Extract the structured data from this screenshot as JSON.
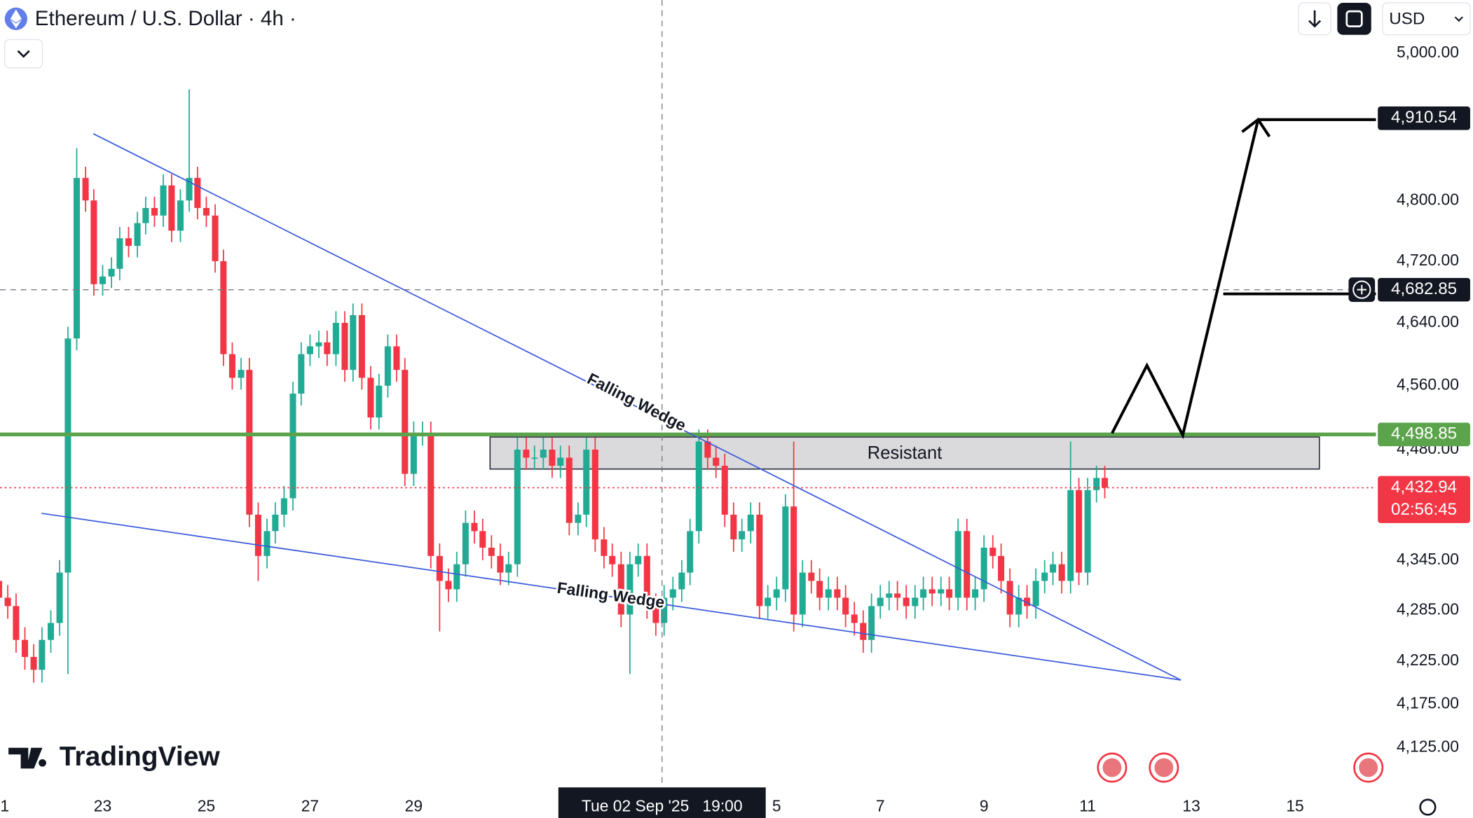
{
  "header": {
    "title": "Ethereum / U.S. Dollar · 4h ·",
    "currency": "USD",
    "logo": "TradingView"
  },
  "chart_data": {
    "type": "candlestick",
    "log": true,
    "up_color": "#22ab94",
    "down_color": "#f23645",
    "xlim": [
      21.02,
      47.56
    ],
    "ylim": [
      4081,
      5074
    ],
    "xticks": [
      {
        "value": 21,
        "label": "1"
      },
      23,
      25,
      27,
      29,
      {
        "value": 36,
        "label": "5"
      },
      {
        "value": 38,
        "label": "7"
      },
      {
        "value": 40,
        "label": "9"
      },
      {
        "value": 42,
        "label": "11"
      },
      {
        "value": 44,
        "label": "13"
      },
      {
        "value": 46,
        "label": "15"
      }
    ],
    "yticks": [
      {
        "value": 5000,
        "label": "5,000.00"
      },
      {
        "value": 4800,
        "label": "4,800.00"
      },
      {
        "value": 4720,
        "label": "4,720.00"
      },
      {
        "value": 4640,
        "label": "4,640.00"
      },
      {
        "value": 4560,
        "label": "4,560.00"
      },
      {
        "value": 4480,
        "label": "4,480.00"
      },
      {
        "value": 4345,
        "label": "4,345.00"
      },
      {
        "value": 4285,
        "label": "4,285.00"
      },
      {
        "value": 4225,
        "label": "4,225.00"
      },
      {
        "value": 4175,
        "label": "4,175.00"
      },
      {
        "value": 4125,
        "label": "4,125.00"
      }
    ],
    "x": [
      21,
      21.17,
      21.33,
      21.5,
      21.67,
      21.83,
      22,
      22.17,
      22.33,
      22.5,
      22.67,
      22.83,
      23,
      23.17,
      23.33,
      23.5,
      23.67,
      23.83,
      24,
      24.17,
      24.33,
      24.5,
      24.67,
      24.83,
      25,
      25.17,
      25.33,
      25.5,
      25.67,
      25.83,
      26,
      26.17,
      26.33,
      26.5,
      26.67,
      26.83,
      27,
      27.17,
      27.33,
      27.5,
      27.67,
      27.83,
      28,
      28.17,
      28.33,
      28.5,
      28.67,
      28.83,
      29,
      29.17,
      29.33,
      29.5,
      29.67,
      29.83,
      30,
      30.17,
      30.33,
      30.5,
      30.67,
      30.83,
      31,
      31.17,
      31.33,
      31.5,
      31.67,
      31.83,
      32,
      32.17,
      32.33,
      32.5,
      32.67,
      32.83,
      33,
      33.17,
      33.33,
      33.5,
      33.67,
      33.83,
      34,
      34.17,
      34.33,
      34.5,
      34.67,
      34.83,
      35,
      35.17,
      35.33,
      35.5,
      35.67,
      35.83,
      36,
      36.17,
      36.33,
      36.5,
      36.67,
      36.83,
      37,
      37.17,
      37.33,
      37.5,
      37.67,
      37.83,
      38,
      38.17,
      38.33,
      38.5,
      38.67,
      38.83,
      39,
      39.17,
      39.33,
      39.5,
      39.67,
      39.83,
      40,
      40.17,
      40.33,
      40.5,
      40.67,
      40.83,
      41,
      41.17,
      41.33,
      41.5,
      41.67,
      41.83,
      42,
      42.17,
      42.33
    ],
    "open": [
      4320,
      4300,
      4290,
      4250,
      4230,
      4215,
      4250,
      4270,
      4330,
      4620,
      4830,
      4800,
      4690,
      4700,
      4710,
      4750,
      4740,
      4770,
      4790,
      4780,
      4820,
      4760,
      4800,
      4830,
      4790,
      4780,
      4720,
      4600,
      4570,
      4580,
      4400,
      4350,
      4380,
      4400,
      4420,
      4550,
      4600,
      4610,
      4615,
      4600,
      4640,
      4580,
      4650,
      4570,
      4520,
      4560,
      4610,
      4580,
      4450,
      4500,
      4500,
      4350,
      4320,
      4310,
      4340,
      4390,
      4380,
      4360,
      4350,
      4330,
      4340,
      4480,
      4470,
      4470,
      4480,
      4460,
      4470,
      4390,
      4400,
      4480,
      4370,
      4350,
      4340,
      4280,
      4340,
      4350,
      4290,
      4270,
      4300,
      4310,
      4330,
      4380,
      4490,
      4470,
      4460,
      4400,
      4370,
      4380,
      4400,
      4290,
      4300,
      4310,
      4410,
      4280,
      4330,
      4320,
      4300,
      4310,
      4300,
      4280,
      4270,
      4250,
      4290,
      4300,
      4305,
      4300,
      4290,
      4300,
      4310,
      4305,
      4310,
      4300,
      4380,
      4300,
      4310,
      4360,
      4350,
      4320,
      4280,
      4300,
      4290,
      4320,
      4330,
      4340,
      4320,
      4430,
      4330,
      4430,
      4445
    ],
    "high": [
      4335,
      4315,
      4305,
      4265,
      4245,
      4265,
      4285,
      4345,
      4635,
      4870,
      4845,
      4815,
      4715,
      4725,
      4765,
      4765,
      4785,
      4805,
      4805,
      4835,
      4835,
      4815,
      4950,
      4845,
      4805,
      4795,
      4735,
      4615,
      4595,
      4595,
      4415,
      4395,
      4415,
      4435,
      4565,
      4615,
      4625,
      4630,
      4630,
      4655,
      4655,
      4665,
      4665,
      4585,
      4575,
      4625,
      4625,
      4595,
      4515,
      4515,
      4515,
      4365,
      4335,
      4355,
      4405,
      4405,
      4395,
      4375,
      4365,
      4355,
      4495,
      4495,
      4485,
      4495,
      4495,
      4485,
      4485,
      4415,
      4495,
      4495,
      4385,
      4365,
      4355,
      4355,
      4365,
      4365,
      4305,
      4315,
      4325,
      4345,
      4395,
      4505,
      4505,
      4485,
      4475,
      4415,
      4395,
      4415,
      4415,
      4315,
      4325,
      4425,
      4490,
      4345,
      4345,
      4335,
      4325,
      4325,
      4315,
      4295,
      4285,
      4305,
      4315,
      4320,
      4320,
      4315,
      4315,
      4325,
      4325,
      4325,
      4325,
      4395,
      4395,
      4325,
      4375,
      4375,
      4365,
      4335,
      4315,
      4315,
      4335,
      4345,
      4355,
      4355,
      4490,
      4445,
      4445,
      4460,
      4460
    ],
    "low": [
      4285,
      4275,
      4235,
      4215,
      4200,
      4200,
      4235,
      4255,
      4210,
      4605,
      4785,
      4675,
      4675,
      4685,
      4695,
      4725,
      4725,
      4755,
      4765,
      4765,
      4745,
      4745,
      4785,
      4775,
      4765,
      4705,
      4585,
      4555,
      4555,
      4385,
      4320,
      4335,
      4365,
      4385,
      4405,
      4535,
      4585,
      4595,
      4585,
      4585,
      4565,
      4565,
      4555,
      4505,
      4505,
      4545,
      4565,
      4435,
      4435,
      4485,
      4335,
      4260,
      4295,
      4295,
      4325,
      4365,
      4345,
      4335,
      4315,
      4315,
      4325,
      4455,
      4455,
      4455,
      4445,
      4445,
      4375,
      4375,
      4385,
      4355,
      4335,
      4325,
      4265,
      4210,
      4325,
      4275,
      4255,
      4255,
      4285,
      4295,
      4315,
      4365,
      4455,
      4445,
      4385,
      4355,
      4355,
      4365,
      4275,
      4275,
      4285,
      4295,
      4260,
      4265,
      4305,
      4285,
      4285,
      4285,
      4265,
      4255,
      4235,
      4235,
      4275,
      4285,
      4285,
      4275,
      4275,
      4285,
      4290,
      4290,
      4285,
      4285,
      4285,
      4285,
      4295,
      4335,
      4305,
      4265,
      4265,
      4275,
      4275,
      4305,
      4315,
      4305,
      4305,
      4315,
      4315,
      4415,
      4420
    ],
    "close": [
      4300,
      4290,
      4250,
      4230,
      4215,
      4250,
      4270,
      4330,
      4620,
      4830,
      4800,
      4690,
      4700,
      4710,
      4750,
      4740,
      4770,
      4790,
      4780,
      4820,
      4760,
      4800,
      4830,
      4790,
      4780,
      4720,
      4600,
      4570,
      4580,
      4400,
      4350,
      4380,
      4400,
      4420,
      4550,
      4600,
      4610,
      4615,
      4600,
      4640,
      4580,
      4650,
      4570,
      4520,
      4560,
      4610,
      4580,
      4450,
      4500,
      4500,
      4350,
      4320,
      4310,
      4340,
      4390,
      4380,
      4360,
      4350,
      4330,
      4340,
      4480,
      4470,
      4470,
      4480,
      4460,
      4470,
      4390,
      4400,
      4480,
      4370,
      4350,
      4340,
      4280,
      4340,
      4350,
      4290,
      4270,
      4300,
      4310,
      4330,
      4380,
      4490,
      4470,
      4460,
      4400,
      4370,
      4380,
      4400,
      4290,
      4300,
      4310,
      4410,
      4280,
      4330,
      4320,
      4300,
      4310,
      4300,
      4280,
      4270,
      4250,
      4290,
      4300,
      4305,
      4300,
      4290,
      4300,
      4310,
      4305,
      4310,
      4300,
      4380,
      4300,
      4310,
      4360,
      4350,
      4320,
      4280,
      4300,
      4290,
      4320,
      4330,
      4340,
      4320,
      4430,
      4330,
      4430,
      4445,
      4433
    ],
    "price_lines": [
      {
        "value": 4910.54,
        "label": "4,910.54",
        "color": "#131722"
      },
      {
        "value": 4498.85,
        "label": "4,498.85",
        "color": "#5ba44c",
        "line": "solid"
      },
      {
        "value": 4432.94,
        "label": "4,432.94",
        "color": "#f23645",
        "line": "dotted",
        "countdown": "02:56:45"
      }
    ],
    "crosshair": {
      "x": 33.79,
      "label": "Tue 02 Sep '25   19:00",
      "price": 4682.85,
      "price_label": "4,682.85"
    },
    "annotations": {
      "zone": "Resistant",
      "upper_line": "Falling Wedge",
      "lower_line": "Falling Wedge"
    }
  }
}
